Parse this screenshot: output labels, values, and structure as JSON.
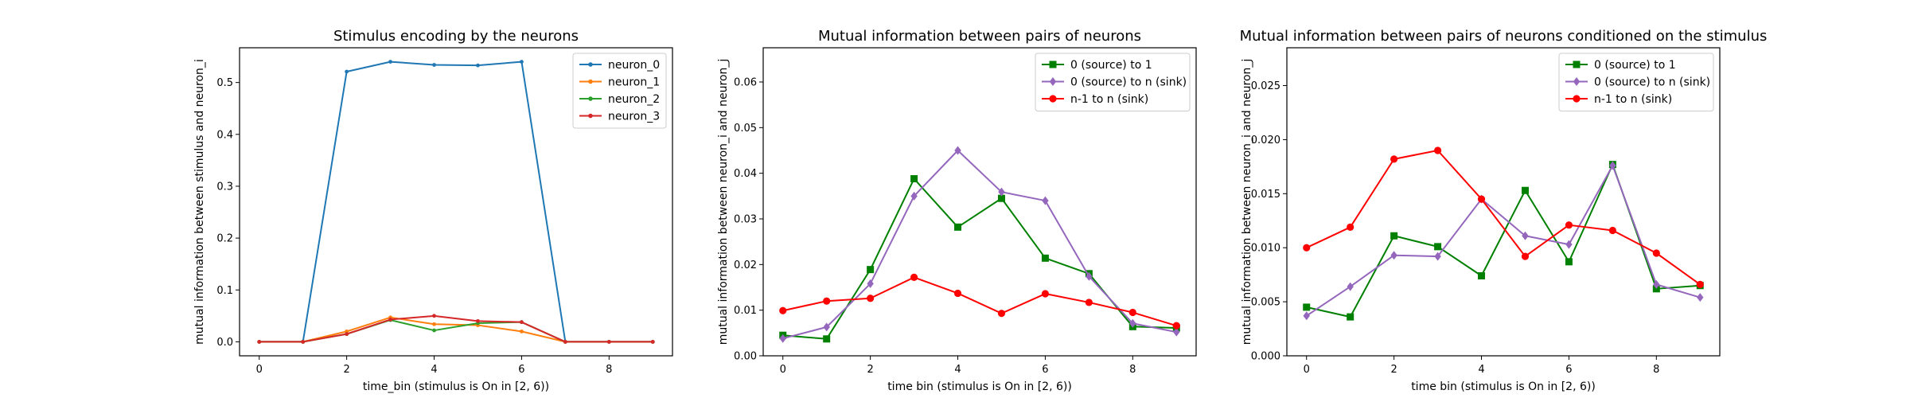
{
  "chart_data": [
    {
      "type": "line",
      "title": "Stimulus encoding by the neurons",
      "xlabel": "time_bin (stimulus is On in [2, 6))",
      "ylabel": "mutual information between stimulus and neuron_i",
      "xlim": [
        -0.45,
        9.45
      ],
      "ylim": [
        -0.027,
        0.567
      ],
      "xticks": [
        "0",
        "2",
        "4",
        "6",
        "8"
      ],
      "yticks": [
        "0.0",
        "0.1",
        "0.2",
        "0.3",
        "0.4",
        "0.5"
      ],
      "legend_position": "top-right",
      "x": [
        0,
        1,
        2,
        3,
        4,
        5,
        6,
        7,
        8,
        9
      ],
      "series": [
        {
          "name": "neuron_0",
          "color": "#1f77b4",
          "marker": "dot",
          "values": [
            0.0,
            0.0,
            0.521,
            0.54,
            0.534,
            0.533,
            0.54,
            0.0,
            0.0,
            0.0
          ]
        },
        {
          "name": "neuron_1",
          "color": "#ff7f0e",
          "marker": "dot",
          "values": [
            0.0,
            0.0,
            0.02,
            0.047,
            0.034,
            0.032,
            0.02,
            0.0,
            0.0,
            0.0
          ]
        },
        {
          "name": "neuron_2",
          "color": "#2ca02c",
          "marker": "dot",
          "values": [
            0.0,
            0.0,
            0.015,
            0.042,
            0.022,
            0.036,
            0.038,
            0.0,
            0.0,
            0.0
          ]
        },
        {
          "name": "neuron_3",
          "color": "#d62728",
          "marker": "dot",
          "values": [
            0.0,
            0.0,
            0.015,
            0.043,
            0.05,
            0.04,
            0.038,
            0.0,
            0.0,
            0.0
          ]
        }
      ]
    },
    {
      "type": "line",
      "title": "Mutual information between pairs of neurons",
      "xlabel": "time bin (stimulus is On in [2, 6))",
      "ylabel": "mutual information between neuron_i and neuron_j",
      "xlim": [
        -0.45,
        9.45
      ],
      "ylim": [
        0,
        0.0675
      ],
      "xticks": [
        "0",
        "2",
        "4",
        "6",
        "8"
      ],
      "yticks": [
        "0.00",
        "0.01",
        "0.02",
        "0.03",
        "0.04",
        "0.05",
        "0.06"
      ],
      "legend_position": "top-right",
      "x": [
        0,
        1,
        2,
        3,
        4,
        5,
        6,
        7,
        8,
        9
      ],
      "series": [
        {
          "name": "0 (source) to 1",
          "color": "#008000",
          "marker": "square",
          "values": [
            0.0045,
            0.0037,
            0.0189,
            0.0388,
            0.0282,
            0.0345,
            0.0214,
            0.018,
            0.0064,
            0.0061
          ]
        },
        {
          "name": "0 (source) to n (sink)",
          "color": "#9467bd",
          "marker": "diamond",
          "values": [
            0.0038,
            0.0063,
            0.0158,
            0.035,
            0.045,
            0.0359,
            0.034,
            0.0174,
            0.0071,
            0.0052
          ]
        },
        {
          "name": "n-1 to n (sink)",
          "color": "#ff0000",
          "marker": "circle",
          "values": [
            0.0099,
            0.012,
            0.0126,
            0.0172,
            0.0137,
            0.0093,
            0.0136,
            0.0117,
            0.0095,
            0.0066
          ]
        }
      ]
    },
    {
      "type": "line",
      "title": "Mutual information between pairs of neurons conditioned on the stimulus",
      "xlabel": "time bin (stimulus is On in [2, 6))",
      "ylabel": "mutual information between neuron_i and neuron_j",
      "xlim": [
        -0.45,
        9.45
      ],
      "ylim": [
        0,
        0.0285
      ],
      "xticks": [
        "0",
        "2",
        "4",
        "6",
        "8"
      ],
      "yticks": [
        "0.000",
        "0.005",
        "0.010",
        "0.015",
        "0.020",
        "0.025"
      ],
      "legend_position": "top-right",
      "x": [
        0,
        1,
        2,
        3,
        4,
        5,
        6,
        7,
        8,
        9
      ],
      "series": [
        {
          "name": "0 (source) to 1",
          "color": "#008000",
          "marker": "square",
          "values": [
            0.0045,
            0.0036,
            0.0111,
            0.0101,
            0.0074,
            0.0153,
            0.0087,
            0.0177,
            0.0062,
            0.0065
          ]
        },
        {
          "name": "0 (source) to n (sink)",
          "color": "#9467bd",
          "marker": "diamond",
          "values": [
            0.0037,
            0.0064,
            0.0093,
            0.0092,
            0.0145,
            0.0111,
            0.0103,
            0.0176,
            0.0066,
            0.0054
          ]
        },
        {
          "name": "n-1 to n (sink)",
          "color": "#ff0000",
          "marker": "circle",
          "values": [
            0.01,
            0.0119,
            0.0182,
            0.019,
            0.0145,
            0.0092,
            0.0121,
            0.0116,
            0.0095,
            0.0066
          ]
        }
      ]
    }
  ]
}
